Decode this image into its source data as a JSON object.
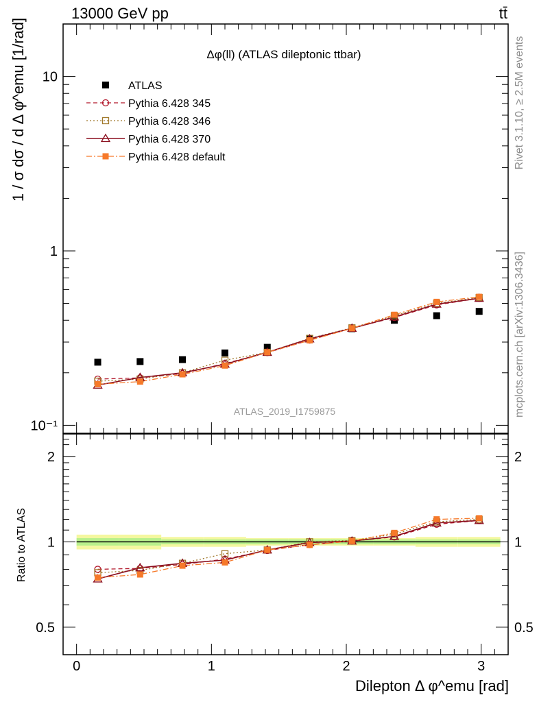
{
  "header": {
    "left": "13000 GeV pp",
    "right": "tt̄"
  },
  "side_text": {
    "rivet": "Rivet 3.1.10, ≥ 2.5M events",
    "source": "mcplots.cern.ch [arXiv:1306.3436]"
  },
  "chart_data": {
    "type": "line",
    "title": "Δφ(ll) (ATLAS dileptonic ttbar)",
    "watermark": "ATLAS_2019_I1759875",
    "xlabel": "Dilepton Δ φ^emu [rad]",
    "ylabel_main": "1 / σ dσ / d Δ φ^emu [1/rad]",
    "ylabel_ratio": "Ratio to ATLAS",
    "xlim": [
      -0.1,
      3.2
    ],
    "ylim_main": [
      0.09,
      20
    ],
    "ylim_ratio": [
      0.4,
      2.4
    ],
    "log_y_main": true,
    "log_y_ratio": true,
    "x_ticks": [
      "0",
      "1",
      "2",
      "3"
    ],
    "y_ticks_main": [
      "10⁻¹",
      "1",
      "10"
    ],
    "y_ticks_ratio": [
      "0.5",
      "1",
      "2"
    ],
    "legend_placement": "top-left",
    "x": [
      0.157,
      0.471,
      0.785,
      1.1,
      1.414,
      1.728,
      2.042,
      2.356,
      2.67,
      2.985
    ],
    "series": [
      {
        "name": "ATLAS",
        "color": "#000000",
        "marker": "square-filled",
        "line": "none",
        "values": [
          0.23,
          0.232,
          0.238,
          0.26,
          0.28,
          0.315,
          0.358,
          0.4,
          0.425,
          0.45
        ],
        "ratio": [
          1,
          1,
          1,
          1,
          1,
          1,
          1,
          1,
          1,
          1
        ],
        "band_inner": [
          0.03,
          0.03,
          0.02,
          0.02,
          0.02,
          0.02,
          0.02,
          0.02,
          0.02,
          0.02
        ],
        "band_outer": [
          0.06,
          0.06,
          0.04,
          0.04,
          0.03,
          0.03,
          0.03,
          0.03,
          0.04,
          0.04
        ]
      },
      {
        "name": "Pythia 6.428 345",
        "color": "#b2182b",
        "marker": "circle-open",
        "line": "dashed",
        "values": [
          0.184,
          0.187,
          0.198,
          0.226,
          0.261,
          0.308,
          0.36,
          0.415,
          0.49,
          0.535
        ],
        "ratio": [
          0.8,
          0.806,
          0.832,
          0.869,
          0.932,
          0.978,
          1.006,
          1.04,
          1.153,
          1.189
        ]
      },
      {
        "name": "Pythia 6.428 346",
        "color": "#a0782a",
        "marker": "square-open",
        "line": "dotted",
        "values": [
          0.179,
          0.184,
          0.2,
          0.236,
          0.262,
          0.315,
          0.362,
          0.425,
          0.5,
          0.54
        ],
        "ratio": [
          0.778,
          0.793,
          0.84,
          0.908,
          0.936,
          1.0,
          1.011,
          1.063,
          1.176,
          1.2
        ]
      },
      {
        "name": "Pythia 6.428 370",
        "color": "#8b0f1f",
        "marker": "triangle-open",
        "line": "solid",
        "values": [
          0.17,
          0.188,
          0.2,
          0.224,
          0.262,
          0.313,
          0.36,
          0.418,
          0.495,
          0.535
        ],
        "ratio": [
          0.74,
          0.81,
          0.84,
          0.862,
          0.936,
          0.994,
          1.006,
          1.045,
          1.165,
          1.189
        ]
      },
      {
        "name": "Pythia 6.428 default",
        "color": "#f6792a",
        "marker": "square-filled",
        "line": "dashdot",
        "values": [
          0.172,
          0.178,
          0.196,
          0.22,
          0.262,
          0.307,
          0.36,
          0.43,
          0.51,
          0.545
        ],
        "ratio": [
          0.748,
          0.767,
          0.824,
          0.846,
          0.936,
          0.975,
          1.006,
          1.075,
          1.2,
          1.211
        ]
      }
    ]
  }
}
